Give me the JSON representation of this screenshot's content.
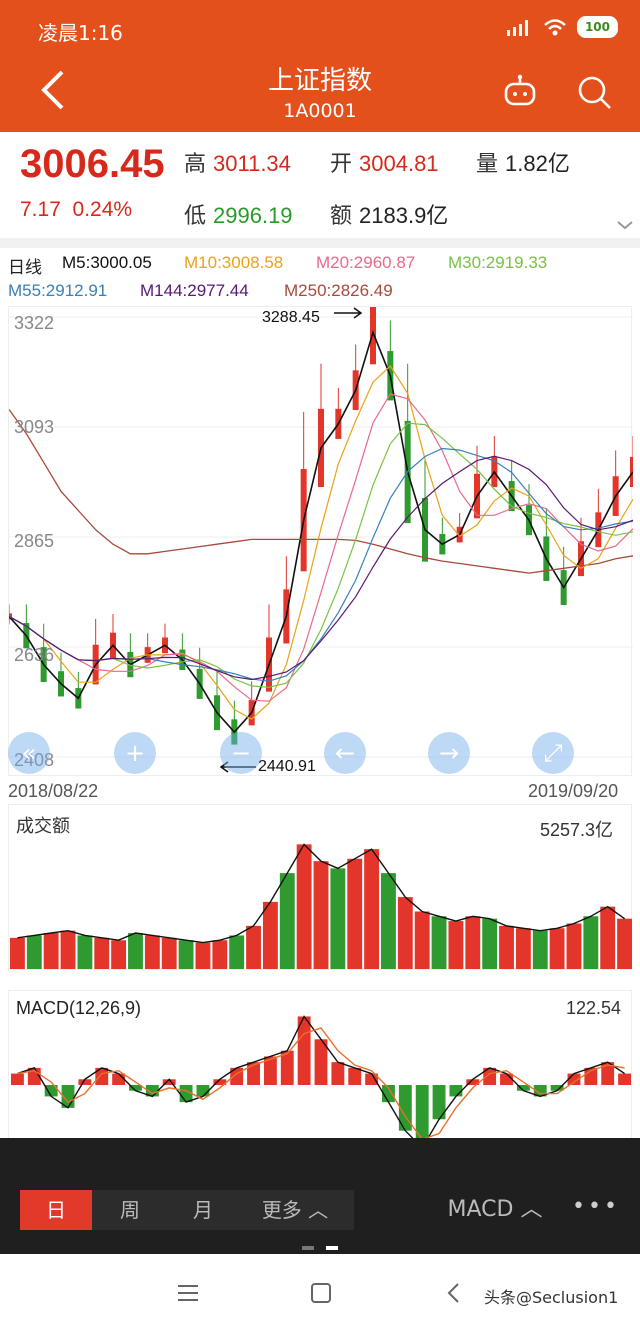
{
  "status": {
    "time": "凌晨1:16",
    "battery": "100"
  },
  "header": {
    "title": "上证指数",
    "code": "1A0001"
  },
  "quote": {
    "price": "3006.45",
    "change": "7.17",
    "change_pct": "0.24%",
    "high_label": "高",
    "high": "3011.34",
    "open_label": "开",
    "open": "3004.81",
    "vol_label": "量",
    "vol": "1.82亿",
    "low_label": "低",
    "low": "2996.19",
    "amt_label": "额",
    "amt": "2183.9亿"
  },
  "ma_legend": {
    "period": "日线",
    "m5": "M5:3000.05",
    "m10": "M10:3008.58",
    "m20": "M20:2960.87",
    "m30": "M30:2919.33",
    "m55": "M55:2912.91",
    "m144": "M144:2977.44",
    "m250": "M250:2826.49"
  },
  "colors": {
    "up": "#e3352a",
    "down": "#2f9a2f",
    "m5": "#111111",
    "m10": "#e8a317",
    "m20": "#e86a8a",
    "m30": "#77c243",
    "m55": "#3a7fb8",
    "m144": "#5a1870",
    "m250": "#a84a3a",
    "brand": "#e4501b"
  },
  "price_axis": {
    "ticks": [
      "3322",
      "3093",
      "2865",
      "2636",
      "2408"
    ],
    "high_mark": "3288.45",
    "low_mark": "2440.91",
    "start_date": "2018/08/22",
    "end_date": "2019/09/20"
  },
  "volume": {
    "label": "成交额",
    "max": "5257.3亿"
  },
  "macd": {
    "label": "MACD(12,26,9)",
    "max": "122.54"
  },
  "chart_data": [
    {
      "type": "line",
      "title": "",
      "series": [
        {
          "name": "M5",
          "values": [
            2700,
            2660,
            2600,
            2560,
            2530,
            2600,
            2640,
            2600,
            2620,
            2640,
            2610,
            2560,
            2500,
            2460,
            2500,
            2600,
            2700,
            2900,
            3050,
            3100,
            3170,
            3290,
            3200,
            3000,
            2880,
            2850,
            2870,
            2950,
            3000,
            2950,
            2900,
            2820,
            2760,
            2820,
            2880,
            2950,
            3000
          ]
        },
        {
          "name": "M250",
          "values": [
            3130,
            3080,
            3020,
            2960,
            2920,
            2880,
            2850,
            2830,
            2830,
            2835,
            2840,
            2845,
            2850,
            2855,
            2860,
            2860,
            2860,
            2860,
            2860,
            2860,
            2858,
            2850,
            2840,
            2830,
            2822,
            2815,
            2810,
            2805,
            2800,
            2795,
            2790,
            2795,
            2800,
            2805,
            2810,
            2820,
            2826
          ]
        }
      ]
    },
    {
      "type": "bar",
      "title": "",
      "values": [
        1300,
        1400,
        1500,
        1600,
        1400,
        1300,
        1200,
        1500,
        1400,
        1300,
        1200,
        1100,
        1200,
        1400,
        1800,
        2800,
        4000,
        5200,
        4500,
        4200,
        4600,
        5000,
        4000,
        3000,
        2400,
        2200,
        2000,
        2200,
        2100,
        1800,
        1700,
        1600,
        1700,
        1900,
        2200,
        2600,
        2100
      ]
    },
    {
      "type": "bar",
      "title": "",
      "values": [
        20,
        30,
        -20,
        -40,
        10,
        30,
        20,
        -10,
        -20,
        10,
        -30,
        -20,
        10,
        30,
        40,
        50,
        60,
        120,
        80,
        40,
        30,
        20,
        -30,
        -80,
        -110,
        -60,
        -20,
        10,
        30,
        20,
        -10,
        -20,
        -10,
        20,
        30,
        40,
        20
      ]
    }
  ],
  "tabs": {
    "day": "日",
    "week": "周",
    "month": "月",
    "more": "更多",
    "indicator": "MACD"
  },
  "watermark": "头条@Seclusion1"
}
